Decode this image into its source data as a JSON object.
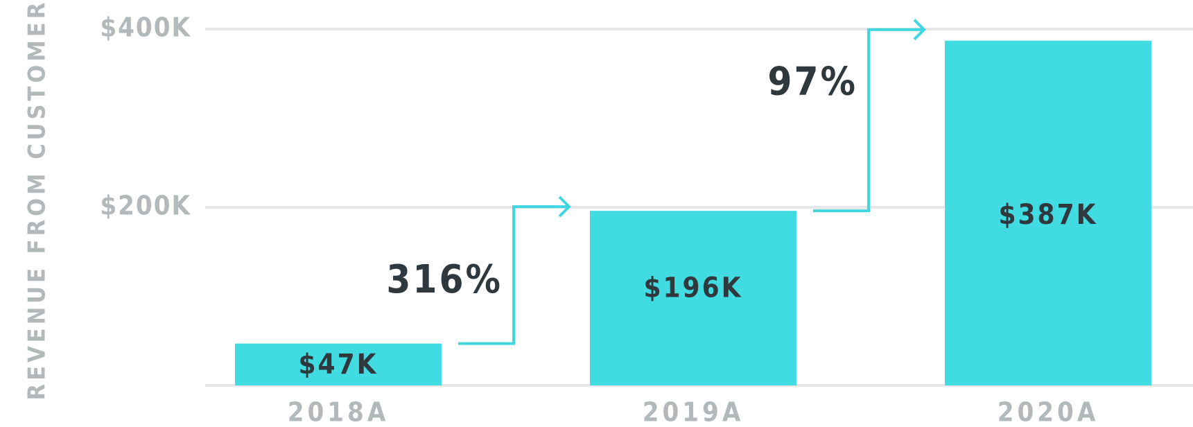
{
  "chart_data": {
    "type": "bar",
    "y_label": "REVENUE FROM CUSTOMER",
    "categories": [
      "2018A",
      "2019A",
      "2020A"
    ],
    "values": [
      47000,
      196000,
      387000
    ],
    "value_labels": [
      "$47K",
      "$196K",
      "$387K"
    ],
    "color": "#40dce2",
    "annotations": [
      "316%",
      "97%"
    ],
    "ylim": [
      0,
      400000
    ],
    "yticks": [
      {
        "value": 200000,
        "label": "$200K"
      },
      {
        "value": 400000,
        "label": "$400K"
      }
    ],
    "grid": true
  }
}
